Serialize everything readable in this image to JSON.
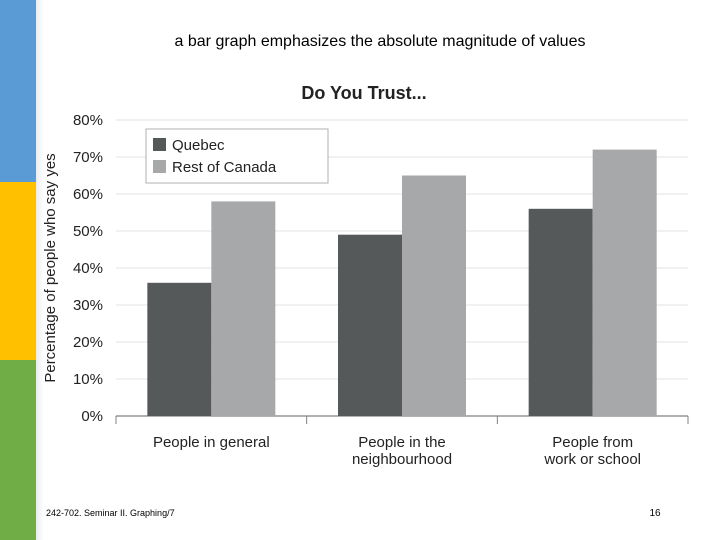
{
  "slide": {
    "heading": "a bar graph emphasizes the absolute magnitude of values",
    "footer_left": "242-702. Seminar II. Graphing/7",
    "page_number": "16",
    "side_bar_colors": [
      "#5b9bd5",
      "#ffc000",
      "#70ad47"
    ]
  },
  "chart_data": {
    "type": "bar",
    "title": "Do You Trust...",
    "xlabel": "",
    "ylabel": "Percentage of people who say yes",
    "categories": [
      "People in general",
      "People in the neighbourhood",
      "People from work or school"
    ],
    "category_label_lines": [
      [
        "People in general"
      ],
      [
        "People in the",
        "neighbourhood"
      ],
      [
        "People from",
        "work or school"
      ]
    ],
    "series": [
      {
        "name": "Quebec",
        "values": [
          36,
          49,
          56
        ],
        "color": "#55595a"
      },
      {
        "name": "Rest of Canada",
        "values": [
          58,
          65,
          72
        ],
        "color": "#a6a8aa"
      }
    ],
    "ylim": [
      0,
      80
    ],
    "yticks": [
      0,
      10,
      20,
      30,
      40,
      50,
      60,
      70,
      80
    ],
    "ytick_labels": [
      "0%",
      "10%",
      "20%",
      "30%",
      "40%",
      "50%",
      "60%",
      "70%",
      "80%"
    ],
    "grid": true,
    "legend_position": "top-left"
  }
}
